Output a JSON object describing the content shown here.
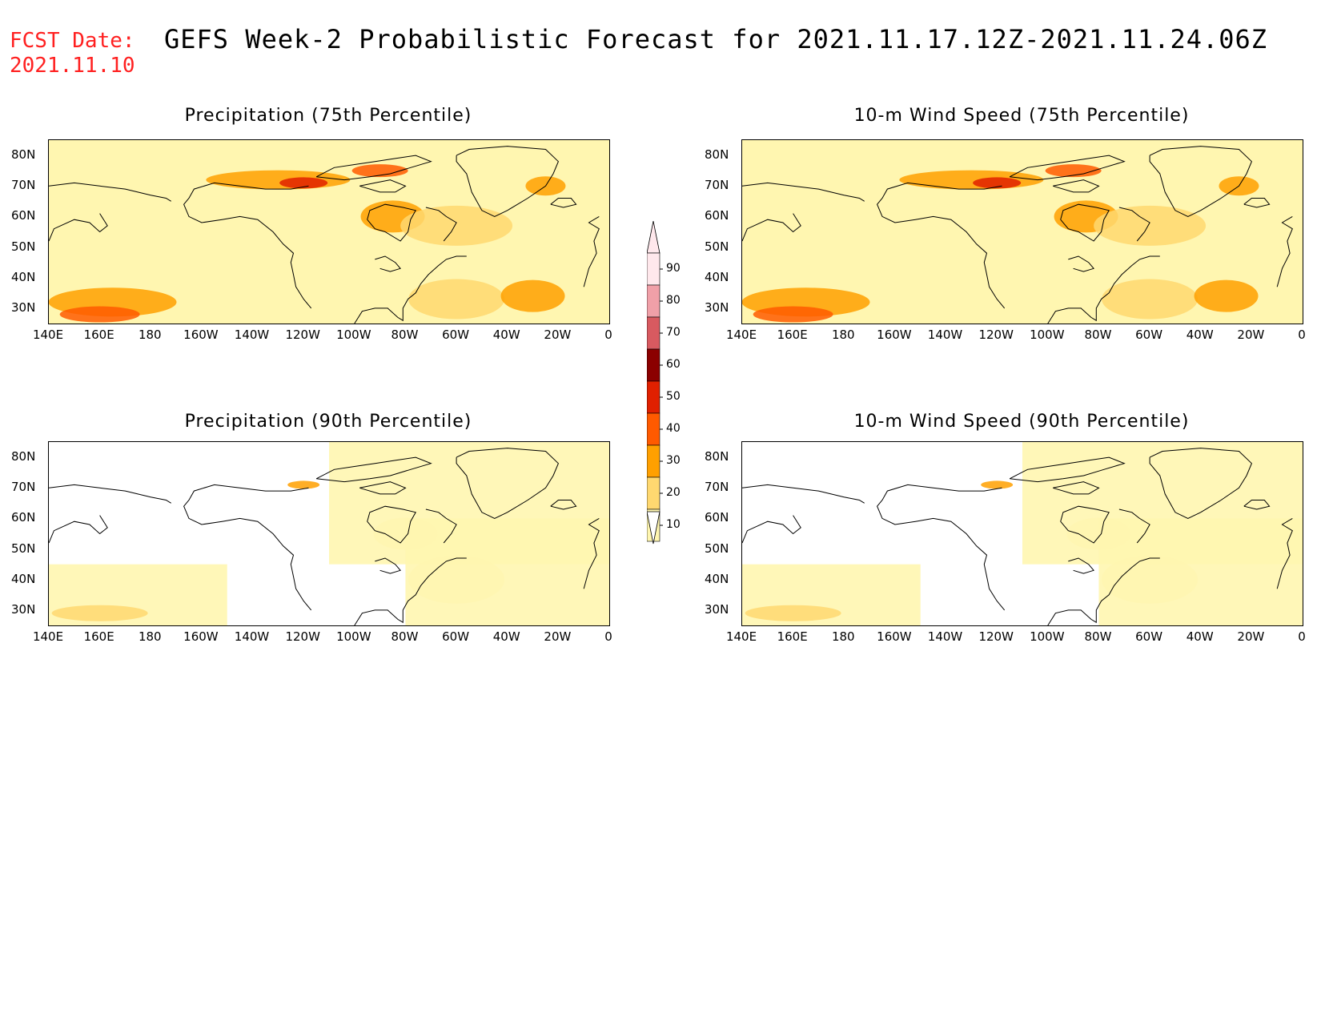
{
  "header": {
    "fcst_line1": "FCST Date:",
    "fcst_line2": "2021.11.10",
    "title": "GEFS Week-2 Probabilistic Forecast for 2021.11.17.12Z-2021.11.24.06Z"
  },
  "panels": [
    {
      "title": "Precipitation (75th Percentile)",
      "intensity": "high"
    },
    {
      "title": "10-m Wind Speed (75th Percentile)",
      "intensity": "high"
    },
    {
      "title": "Precipitation (90th Percentile)",
      "intensity": "low"
    },
    {
      "title": "10-m Wind Speed (90th Percentile)",
      "intensity": "low"
    }
  ],
  "axes": {
    "lat_labels": [
      "80N",
      "70N",
      "60N",
      "50N",
      "40N",
      "30N"
    ],
    "lon_labels": [
      "140E",
      "160E",
      "180",
      "160W",
      "140W",
      "120W",
      "100W",
      "80W",
      "60W",
      "40W",
      "20W",
      "0"
    ]
  },
  "colorbar": {
    "levels": [
      "90",
      "80",
      "70",
      "60",
      "50",
      "40",
      "30",
      "20",
      "10"
    ],
    "colors": [
      "#ffe8ec",
      "#f0a0a8",
      "#d85a60",
      "#8b0000",
      "#e02000",
      "#ff5a00",
      "#ffa000",
      "#ffd870",
      "#fff6b0"
    ]
  }
}
